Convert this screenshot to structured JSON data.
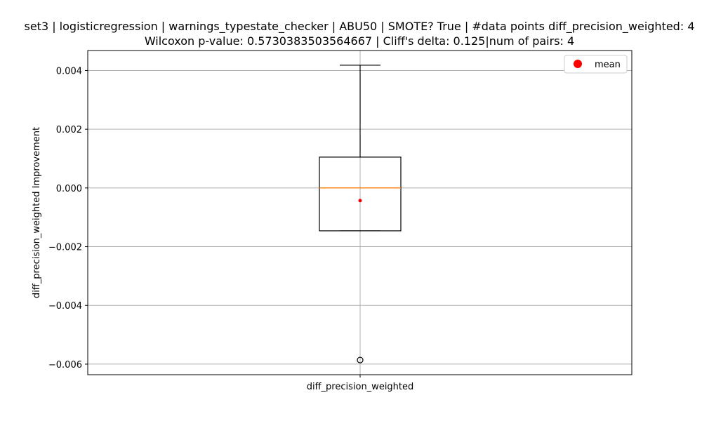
{
  "chart_data": {
    "type": "box",
    "title_line1": "set3 | logisticregression | warnings_typestate_checker | ABU50 | SMOTE? True | #data points diff_precision_weighted: 4",
    "title_line2": "Wilcoxon p-value: 0.5730383503564667 | Cliff's delta: 0.125|num of pairs: 4",
    "xlabel": "",
    "ylabel": "diff_precision_weighted Improvement",
    "categories": [
      "diff_precision_weighted"
    ],
    "ylim": [
      -0.00636,
      0.00468
    ],
    "yticks": [
      0.004,
      0.002,
      0.0,
      -0.002,
      -0.004,
      -0.006
    ],
    "ytick_labels": [
      "0.004",
      "0.002",
      "0.000",
      "−0.002",
      "−0.004",
      "−0.006"
    ],
    "grid": true,
    "legend": {
      "placement": "top-right",
      "entries": [
        {
          "label": "mean",
          "marker": "circle",
          "color": "#ff0000"
        }
      ]
    },
    "box": {
      "whisker_low": -0.00146,
      "q1": -0.00146,
      "median": 0.0,
      "q3": 0.00105,
      "whisker_high": 0.00418,
      "mean": -0.00043,
      "outliers": [
        -0.00586
      ]
    },
    "colors": {
      "median": "#ff7f0e",
      "mean": "#ff0000",
      "box": "#000000",
      "grid": "#b0b0b0"
    }
  }
}
